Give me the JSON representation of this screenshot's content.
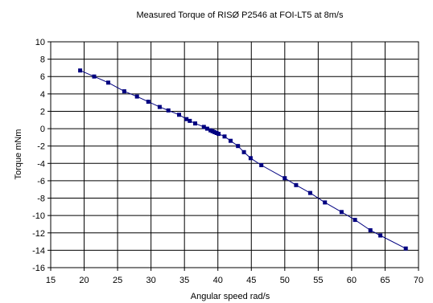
{
  "chart_data": {
    "type": "line",
    "title": "Measured Torque of RISØ P2546 at FOI-LT5 at 8m/s",
    "xlabel": "Angular speed rad/s",
    "ylabel": "Torque mNm",
    "xlim": [
      15,
      70
    ],
    "ylim": [
      -16,
      10
    ],
    "x_ticks": [
      "15",
      "20",
      "25",
      "30",
      "35",
      "40",
      "45",
      "50",
      "55",
      "60",
      "65",
      "70"
    ],
    "y_ticks": [
      "10",
      "8",
      "6",
      "4",
      "2",
      "0",
      "-2",
      "-4",
      "-6",
      "-8",
      "-10",
      "-12",
      "-14",
      "-16"
    ],
    "grid": true,
    "legend": "none",
    "series": [
      {
        "color": "#000080",
        "marker": "square",
        "x": [
          19.4,
          21.5,
          23.6,
          26.0,
          27.9,
          29.6,
          31.3,
          32.6,
          34.2,
          35.3,
          35.8,
          36.6,
          37.9,
          38.4,
          38.9,
          39.2,
          39.5,
          39.8,
          40.1,
          41.0,
          41.9,
          43.0,
          43.9,
          44.9,
          46.5,
          50.0,
          51.7,
          53.8,
          56.0,
          58.5,
          60.5,
          62.8,
          64.3,
          68.1
        ],
        "y": [
          6.7,
          6.0,
          5.3,
          4.3,
          3.7,
          3.1,
          2.5,
          2.1,
          1.6,
          1.1,
          0.9,
          0.6,
          0.2,
          0.0,
          -0.2,
          -0.3,
          -0.4,
          -0.5,
          -0.6,
          -0.9,
          -1.4,
          -2.0,
          -2.7,
          -3.4,
          -4.2,
          -5.7,
          -6.5,
          -7.4,
          -8.5,
          -9.6,
          -10.5,
          -11.7,
          -12.3,
          -13.8
        ]
      }
    ]
  }
}
